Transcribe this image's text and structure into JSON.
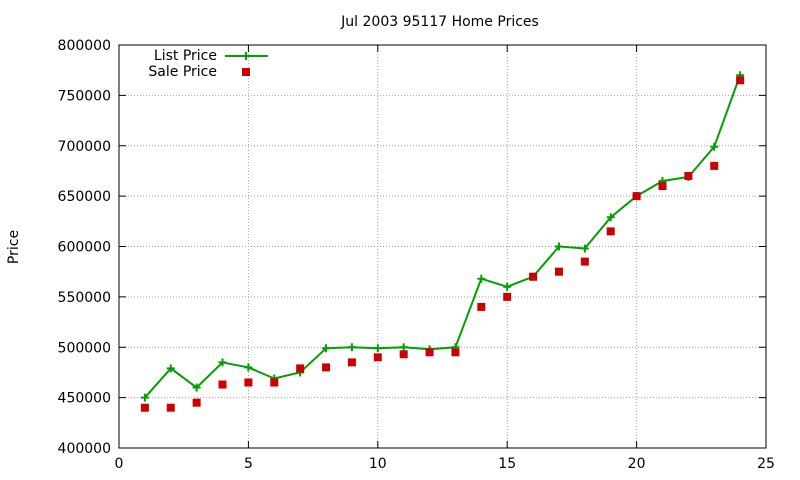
{
  "chart_data": {
    "type": "line",
    "title": "Jul 2003 95117 Home Prices",
    "xlabel": "",
    "ylabel": "Price",
    "xlim": [
      0,
      25
    ],
    "ylim": [
      400000,
      800000
    ],
    "xticks": [
      0,
      5,
      10,
      15,
      20,
      25
    ],
    "yticks": [
      400000,
      450000,
      500000,
      550000,
      600000,
      650000,
      700000,
      750000,
      800000
    ],
    "grid": true,
    "legend_position": "top-left",
    "x": [
      1,
      2,
      3,
      4,
      5,
      6,
      7,
      8,
      9,
      10,
      11,
      12,
      13,
      14,
      15,
      16,
      17,
      18,
      19,
      20,
      21,
      22,
      23,
      24
    ],
    "series": [
      {
        "name": "List Price",
        "style": "linespoints",
        "marker": "plus",
        "color": "#00a000",
        "values": [
          450000,
          479000,
          460000,
          485000,
          480000,
          469000,
          475000,
          499000,
          500000,
          499000,
          500000,
          498000,
          500000,
          568000,
          560000,
          570000,
          600000,
          598000,
          629000,
          650000,
          665000,
          669000,
          699000,
          770000
        ]
      },
      {
        "name": "Sale Price",
        "style": "points",
        "marker": "square",
        "color": "#cc0000",
        "values": [
          440000,
          440000,
          445000,
          463000,
          465000,
          465000,
          479000,
          480000,
          485000,
          490000,
          493000,
          495000,
          495000,
          540000,
          550000,
          570000,
          575000,
          585000,
          615000,
          650000,
          660000,
          670000,
          680000,
          765000
        ]
      }
    ]
  }
}
